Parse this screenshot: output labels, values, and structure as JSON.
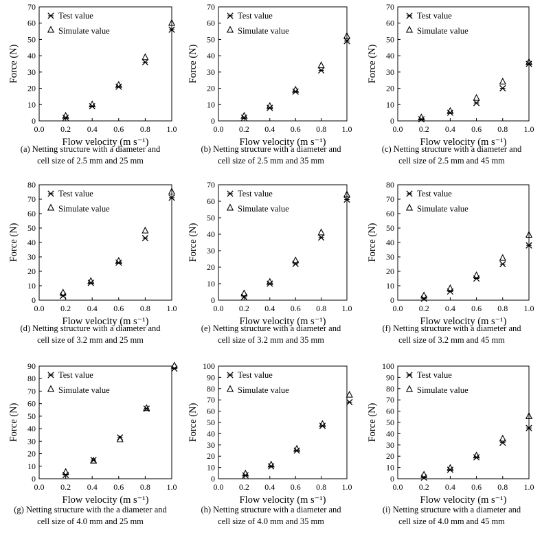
{
  "legend": {
    "test": "Test value",
    "simulate": "Simulate value"
  },
  "chart_data": [
    {
      "type": "scatter",
      "title": "",
      "caption": [
        "(a) Netting structure with a diameter and",
        "cell size of 2.5 mm and 25 mm"
      ],
      "xlabel": "Flow velocity (m s⁻¹)",
      "ylabel": "Force (N)",
      "xlim": [
        0,
        1.0
      ],
      "ylim": [
        0,
        70
      ],
      "xticks": [
        0.0,
        0.2,
        0.4,
        0.6,
        0.8,
        1.0
      ],
      "yticks": [
        0,
        10,
        20,
        30,
        40,
        50,
        60,
        70
      ],
      "grid": false,
      "legend_position": "top-left",
      "series": [
        {
          "name": "Test value",
          "marker": "cross-star",
          "x": [
            0.2,
            0.4,
            0.6,
            0.8,
            1.0
          ],
          "y": [
            2,
            9,
            21,
            36,
            56
          ]
        },
        {
          "name": "Simulate value",
          "marker": "triangle",
          "x": [
            0.2,
            0.4,
            0.6,
            0.8,
            1.0
          ],
          "y": [
            2,
            9,
            21,
            38,
            59
          ]
        }
      ]
    },
    {
      "type": "scatter",
      "title": "",
      "caption": [
        "(b) Netting structure with a diameter and",
        "cell size of 2.5 mm and 35 mm"
      ],
      "xlabel": "Flow velocity (m s⁻¹)",
      "ylabel": "Force (N)",
      "xlim": [
        0,
        1.0
      ],
      "ylim": [
        0,
        70
      ],
      "xticks": [
        0.0,
        0.2,
        0.4,
        0.6,
        0.8,
        1.0
      ],
      "yticks": [
        0,
        10,
        20,
        30,
        40,
        50,
        60,
        70
      ],
      "grid": false,
      "legend_position": "top-left",
      "series": [
        {
          "name": "Test value",
          "marker": "cross-star",
          "x": [
            0.2,
            0.4,
            0.6,
            0.8,
            1.0
          ],
          "y": [
            2,
            8,
            18,
            31,
            49
          ]
        },
        {
          "name": "Simulate value",
          "marker": "triangle",
          "x": [
            0.2,
            0.4,
            0.6,
            0.8,
            1.0
          ],
          "y": [
            2,
            8,
            18,
            33,
            51
          ]
        }
      ]
    },
    {
      "type": "scatter",
      "title": "",
      "caption": [
        "(c) Netting structure with a diameter and",
        "cell size of 2.5 mm and 45 mm"
      ],
      "xlabel": "Flow velocity (m s⁻¹)",
      "ylabel": "Force (N)",
      "xlim": [
        0,
        1.0
      ],
      "ylim": [
        0,
        70
      ],
      "xticks": [
        0.0,
        0.2,
        0.4,
        0.6,
        0.8,
        1.0
      ],
      "yticks": [
        0,
        10,
        20,
        30,
        40,
        50,
        60,
        70
      ],
      "grid": false,
      "legend_position": "top-left",
      "series": [
        {
          "name": "Test value",
          "marker": "cross-star",
          "x": [
            0.18,
            0.4,
            0.6,
            0.8,
            1.0
          ],
          "y": [
            1,
            5,
            11,
            20,
            35
          ]
        },
        {
          "name": "Simulate value",
          "marker": "triangle",
          "x": [
            0.18,
            0.4,
            0.6,
            0.8,
            1.0
          ],
          "y": [
            1,
            5,
            13,
            23,
            35
          ]
        }
      ]
    },
    {
      "type": "scatter",
      "title": "",
      "caption": [
        "(d) Netting structure with a diameter and",
        "cell size of 3.2 mm and 25 mm"
      ],
      "xlabel": "Flow velocity (m s⁻¹)",
      "ylabel": "Force (N)",
      "xlim": [
        0,
        1.0
      ],
      "ylim": [
        0,
        80
      ],
      "xticks": [
        0.0,
        0.2,
        0.4,
        0.6,
        0.8,
        1.0
      ],
      "yticks": [
        0,
        10,
        20,
        30,
        40,
        50,
        60,
        70,
        80
      ],
      "grid": false,
      "legend_position": "top-left",
      "series": [
        {
          "name": "Test value",
          "marker": "cross-star",
          "x": [
            0.18,
            0.39,
            0.6,
            0.8,
            1.0
          ],
          "y": [
            3,
            12,
            26,
            43,
            71
          ]
        },
        {
          "name": "Simulate value",
          "marker": "triangle",
          "x": [
            0.18,
            0.39,
            0.6,
            0.8,
            1.0
          ],
          "y": [
            4,
            12,
            26,
            47,
            74
          ]
        }
      ]
    },
    {
      "type": "scatter",
      "title": "",
      "caption": [
        "(e) Netting structure with a diameter and",
        "cell size of 3.2 mm and 35 mm"
      ],
      "xlabel": "Flow velocity (m s⁻¹)",
      "ylabel": "Force (N)",
      "xlim": [
        0,
        1.0
      ],
      "ylim": [
        0,
        70
      ],
      "xticks": [
        0.0,
        0.2,
        0.4,
        0.6,
        0.8,
        1.0
      ],
      "yticks": [
        0,
        10,
        20,
        30,
        40,
        50,
        60,
        70
      ],
      "grid": false,
      "legend_position": "top-left",
      "series": [
        {
          "name": "Test value",
          "marker": "cross-star",
          "x": [
            0.2,
            0.4,
            0.6,
            0.8,
            1.0
          ],
          "y": [
            2,
            10,
            22,
            38,
            61
          ]
        },
        {
          "name": "Simulate value",
          "marker": "triangle",
          "x": [
            0.2,
            0.4,
            0.6,
            0.8,
            1.0
          ],
          "y": [
            3,
            10,
            23,
            40,
            63
          ]
        }
      ]
    },
    {
      "type": "scatter",
      "title": "",
      "caption": [
        "(f) Netting structure with a diameter and",
        "cell size of 3.2 mm and 45 mm"
      ],
      "xlabel": "Flow velocity (m s⁻¹)",
      "ylabel": "Force (N)",
      "xlim": [
        0,
        1.0
      ],
      "ylim": [
        0,
        80
      ],
      "xticks": [
        0.0,
        0.2,
        0.4,
        0.6,
        0.8,
        1.0
      ],
      "yticks": [
        0,
        10,
        20,
        30,
        40,
        50,
        60,
        70,
        80
      ],
      "grid": false,
      "legend_position": "top-left",
      "series": [
        {
          "name": "Test value",
          "marker": "cross-star",
          "x": [
            0.2,
            0.4,
            0.6,
            0.8,
            1.0
          ],
          "y": [
            1,
            6,
            15,
            25,
            38
          ]
        },
        {
          "name": "Simulate value",
          "marker": "triangle",
          "x": [
            0.2,
            0.4,
            0.6,
            0.8,
            1.0
          ],
          "y": [
            2,
            7,
            16,
            28,
            44
          ]
        }
      ]
    },
    {
      "type": "scatter",
      "title": "",
      "caption": [
        "(g) Netting structure with the a diameter and",
        "cell size of 4.0 mm and 25 mm"
      ],
      "xlabel": "Flow velocity (m s⁻¹)",
      "ylabel": "Force (N)",
      "xlim": [
        0,
        1.0
      ],
      "ylim": [
        0,
        90
      ],
      "xticks": [
        0.0,
        0.2,
        0.4,
        0.6,
        0.8,
        1.0
      ],
      "yticks": [
        0,
        10,
        20,
        30,
        40,
        50,
        60,
        70,
        80,
        90
      ],
      "grid": false,
      "legend_position": "top-left",
      "series": [
        {
          "name": "Test value",
          "marker": "cross-star",
          "x": [
            0.2,
            0.41,
            0.61,
            0.81,
            1.02
          ],
          "y": [
            3,
            15,
            33,
            56,
            88
          ]
        },
        {
          "name": "Simulate value",
          "marker": "triangle",
          "x": [
            0.2,
            0.41,
            0.61,
            0.81,
            1.02
          ],
          "y": [
            4,
            13,
            30,
            55,
            89
          ]
        }
      ]
    },
    {
      "type": "scatter",
      "title": "",
      "caption": [
        "(h) Netting structure with a diameter and",
        "cell size of 4.0 mm and 35 mm"
      ],
      "xlabel": "Flow velocity (m s⁻¹)",
      "ylabel": "Force (N)",
      "xlim": [
        0,
        1.0
      ],
      "ylim": [
        0,
        100
      ],
      "xticks": [
        0.0,
        0.2,
        0.4,
        0.6,
        0.8,
        1.0
      ],
      "yticks": [
        0,
        10,
        20,
        30,
        40,
        50,
        60,
        70,
        80,
        90,
        100
      ],
      "grid": false,
      "legend_position": "top-left",
      "series": [
        {
          "name": "Test value",
          "marker": "cross-star",
          "x": [
            0.21,
            0.41,
            0.61,
            0.81,
            1.02
          ],
          "y": [
            3,
            11,
            25,
            47,
            68
          ]
        },
        {
          "name": "Simulate value",
          "marker": "triangle",
          "x": [
            0.21,
            0.41,
            0.61,
            0.81,
            1.02
          ],
          "y": [
            3,
            11,
            25,
            47,
            73
          ]
        }
      ]
    },
    {
      "type": "scatter",
      "title": "",
      "caption": [
        "(i) Netting structure with a diameter and",
        "cell size of 4.0 mm and 45 mm"
      ],
      "xlabel": "Flow velocity (m s⁻¹)",
      "ylabel": "Force (N)",
      "xlim": [
        0,
        1.0
      ],
      "ylim": [
        0,
        100
      ],
      "xticks": [
        0.0,
        0.2,
        0.4,
        0.6,
        0.8,
        1.0
      ],
      "yticks": [
        0,
        10,
        20,
        30,
        40,
        50,
        60,
        70,
        80,
        90,
        100
      ],
      "grid": false,
      "legend_position": "top-left",
      "series": [
        {
          "name": "Test value",
          "marker": "cross-star",
          "x": [
            0.2,
            0.4,
            0.6,
            0.8,
            1.0
          ],
          "y": [
            1,
            8,
            19,
            32,
            45
          ]
        },
        {
          "name": "Simulate value",
          "marker": "triangle",
          "x": [
            0.2,
            0.4,
            0.6,
            0.8,
            1.0
          ],
          "y": [
            2,
            8,
            19,
            34,
            54
          ]
        }
      ]
    }
  ]
}
